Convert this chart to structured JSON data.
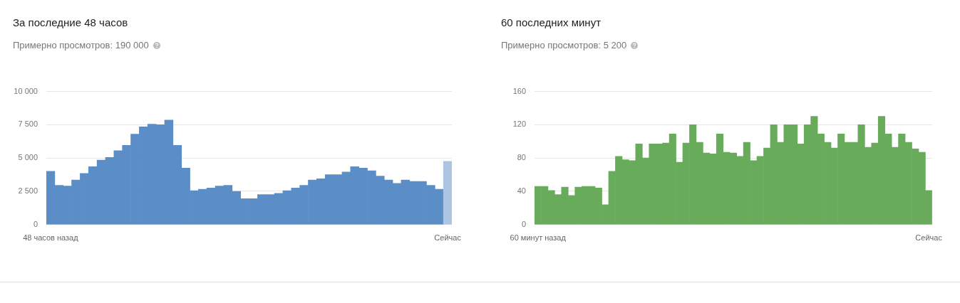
{
  "chart_data": [
    {
      "type": "bar",
      "title": "За последние 48 часов",
      "subtitle": "Примерно просмотров: 190 000",
      "categories": [
        "48 часов назад",
        null,
        null,
        null,
        null,
        null,
        null,
        null,
        null,
        null,
        null,
        null,
        null,
        null,
        null,
        null,
        null,
        null,
        null,
        null,
        null,
        null,
        null,
        null,
        null,
        null,
        null,
        null,
        null,
        null,
        null,
        null,
        null,
        null,
        null,
        null,
        null,
        null,
        null,
        null,
        null,
        null,
        null,
        null,
        null,
        null,
        null,
        "Сейчас"
      ],
      "values": [
        4000,
        2950,
        2900,
        3350,
        3850,
        4350,
        4850,
        5050,
        5550,
        5950,
        6800,
        7350,
        7550,
        7500,
        7850,
        5950,
        4250,
        2550,
        2650,
        2750,
        2900,
        2950,
        2500,
        1950,
        1950,
        2250,
        2250,
        2350,
        2550,
        2750,
        2950,
        3350,
        3450,
        3750,
        3750,
        3950,
        4350,
        4250,
        4050,
        3650,
        3350,
        3100,
        3350,
        3250,
        3250,
        2950,
        2650,
        4750
      ],
      "colors": [
        "#5b8dc7",
        "#5b8dc7",
        "#5b8dc7",
        "#5b8dc7",
        "#5b8dc7",
        "#5b8dc7",
        "#5b8dc7",
        "#5b8dc7",
        "#5b8dc7",
        "#5b8dc7",
        "#5b8dc7",
        "#5b8dc7",
        "#5b8dc7",
        "#5b8dc7",
        "#5b8dc7",
        "#5b8dc7",
        "#5b8dc7",
        "#5b8dc7",
        "#5b8dc7",
        "#5b8dc7",
        "#5b8dc7",
        "#5b8dc7",
        "#5b8dc7",
        "#5b8dc7",
        "#5b8dc7",
        "#5b8dc7",
        "#5b8dc7",
        "#5b8dc7",
        "#5b8dc7",
        "#5b8dc7",
        "#5b8dc7",
        "#5b8dc7",
        "#5b8dc7",
        "#5b8dc7",
        "#5b8dc7",
        "#5b8dc7",
        "#5b8dc7",
        "#5b8dc7",
        "#5b8dc7",
        "#5b8dc7",
        "#5b8dc7",
        "#5b8dc7",
        "#5b8dc7",
        "#5b8dc7",
        "#5b8dc7",
        "#5b8dc7",
        "#5b8dc7",
        "#aec4e3"
      ],
      "ylim": [
        0,
        10000
      ],
      "yticks": [
        0,
        {
          "value": 2500,
          "label": "2 500"
        },
        {
          "value": 5000,
          "label": "5 000"
        },
        {
          "value": 7500,
          "label": "7 500"
        },
        {
          "value": 10000,
          "label": "10 000"
        }
      ],
      "grid": "y"
    },
    {
      "type": "bar",
      "title": "60 последних минут",
      "subtitle": "Примерно просмотров: 5 200",
      "categories": [
        "60 минут назад",
        null,
        null,
        null,
        null,
        null,
        null,
        null,
        null,
        null,
        null,
        null,
        null,
        null,
        null,
        null,
        null,
        null,
        null,
        null,
        null,
        null,
        null,
        null,
        null,
        null,
        null,
        null,
        null,
        null,
        null,
        null,
        null,
        null,
        null,
        null,
        null,
        null,
        null,
        null,
        null,
        null,
        null,
        null,
        null,
        null,
        null,
        null,
        null,
        null,
        null,
        null,
        null,
        null,
        null,
        null,
        null,
        null,
        "Сейчас"
      ],
      "values": [
        46,
        46,
        41,
        36,
        45,
        35,
        45,
        46,
        46,
        44,
        24,
        64,
        82,
        78,
        77,
        97,
        80,
        97,
        97,
        98,
        109,
        75,
        98,
        120,
        99,
        86,
        85,
        109,
        87,
        86,
        82,
        99,
        77,
        82,
        92,
        120,
        99,
        120,
        120,
        97,
        120,
        130,
        109,
        99,
        92,
        109,
        99,
        99,
        120,
        93,
        98,
        130,
        109,
        93,
        109,
        99,
        91,
        87,
        41
      ],
      "color": "#68ab5a",
      "ylim": [
        0,
        160
      ],
      "yticks": [
        0,
        40,
        80,
        120,
        160
      ],
      "grid": "y"
    }
  ]
}
